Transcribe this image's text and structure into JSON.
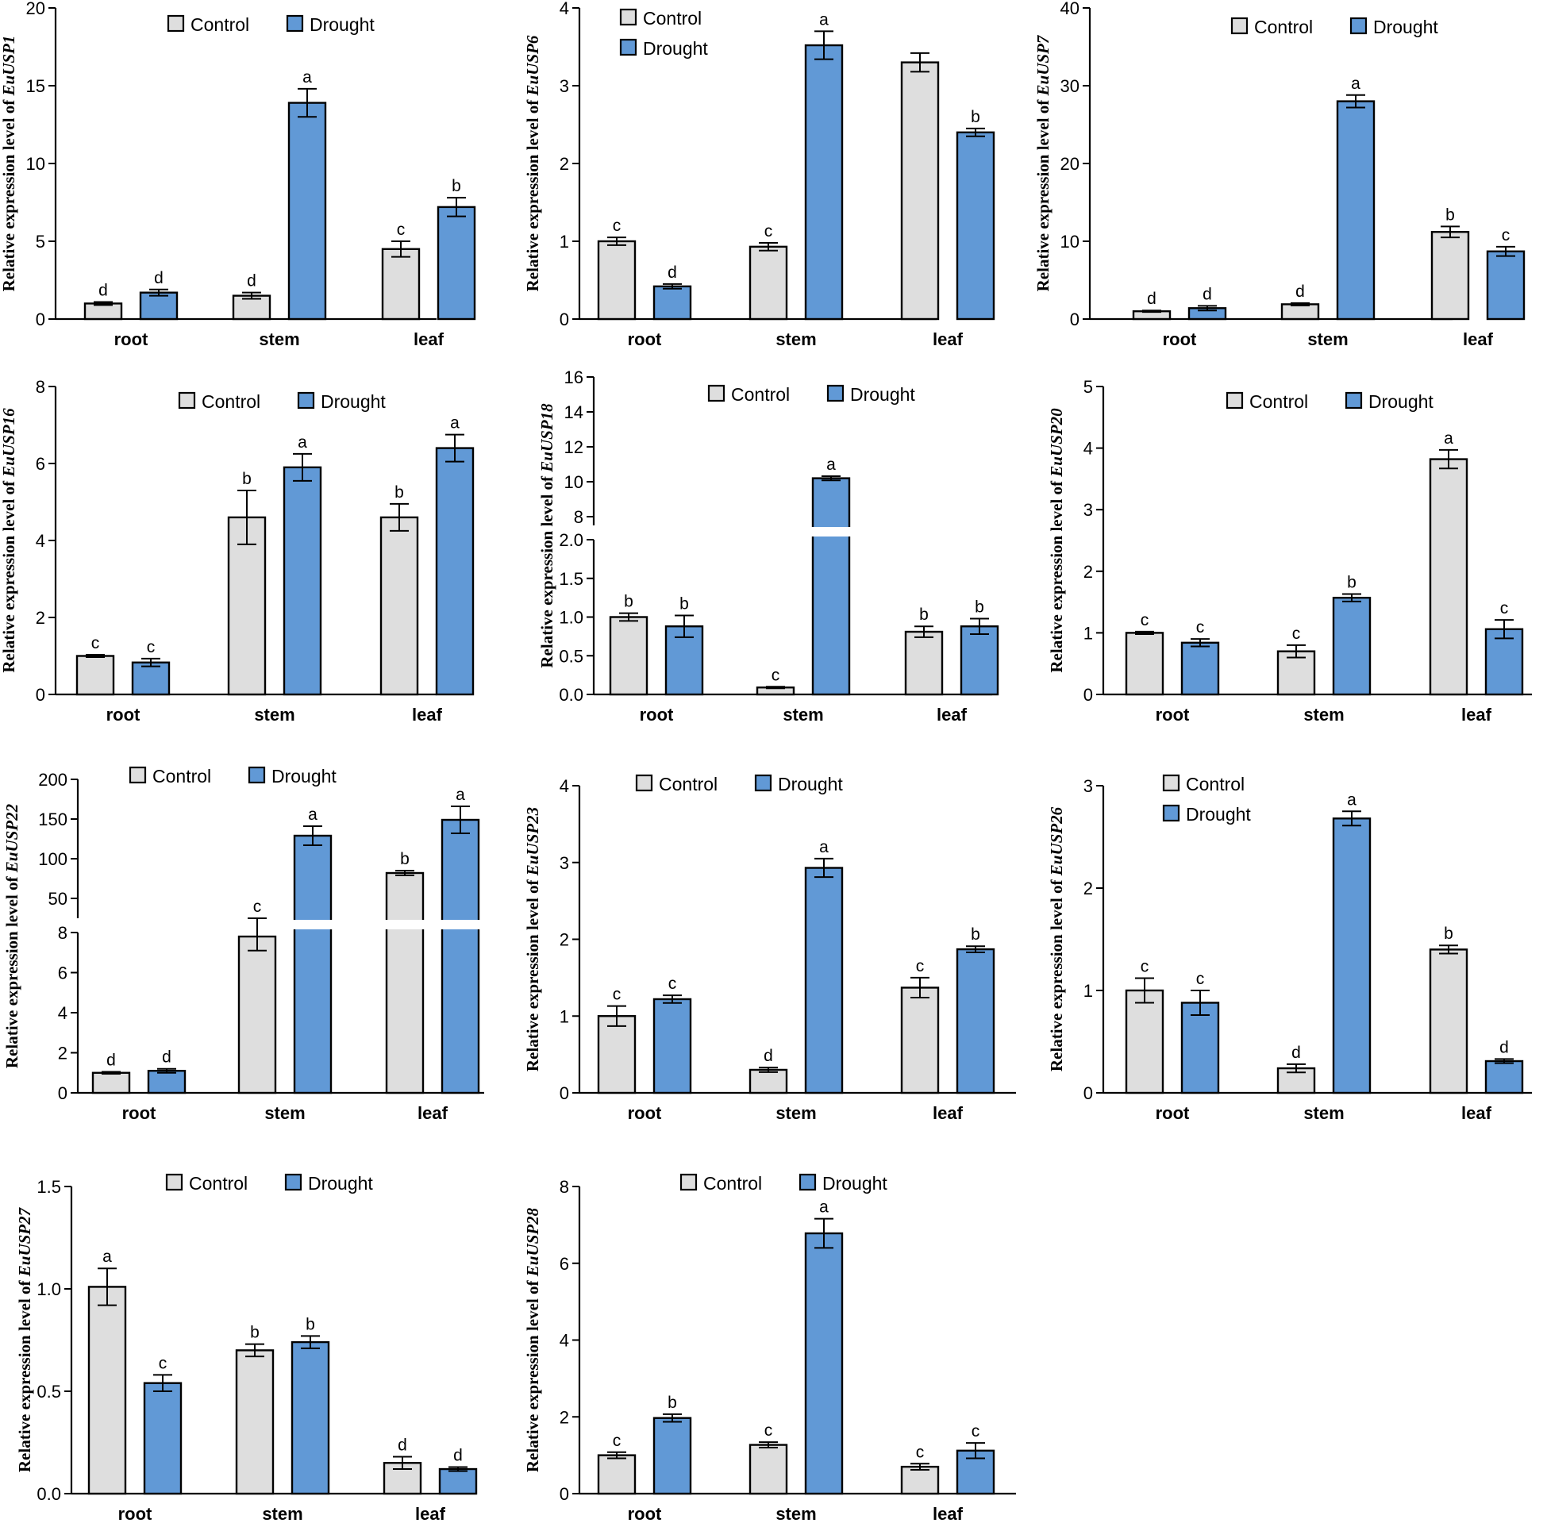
{
  "chart_data": [
    {
      "type": "bar",
      "gene": "EuUSP1",
      "ylabel": "Relative expression level of",
      "categories": [
        "root",
        "stem",
        "leaf"
      ],
      "yticks": [
        "0",
        "5",
        "10",
        "15",
        "20"
      ],
      "ylim": [
        0,
        20
      ],
      "legend": "horizontal",
      "series": [
        {
          "name": "Control",
          "values": [
            1.0,
            1.5,
            4.5
          ],
          "errors": [
            0.1,
            0.2,
            0.5
          ],
          "letters": [
            "d",
            "d",
            "c"
          ]
        },
        {
          "name": "Drought",
          "values": [
            1.7,
            13.9,
            7.2
          ],
          "errors": [
            0.2,
            0.9,
            0.6
          ],
          "letters": [
            "d",
            "a",
            "b"
          ]
        }
      ]
    },
    {
      "type": "bar",
      "gene": "EuUSP6",
      "ylabel": "Relative expression level of",
      "categories": [
        "root",
        "stem",
        "leaf"
      ],
      "yticks": [
        "0",
        "1",
        "2",
        "3",
        "4"
      ],
      "ylim": [
        0,
        4
      ],
      "legend": "vertical",
      "series": [
        {
          "name": "Control",
          "values": [
            1.0,
            0.93,
            3.3
          ],
          "errors": [
            0.05,
            0.05,
            0.12
          ],
          "letters": [
            "c",
            "c",
            ""
          ]
        },
        {
          "name": "Drought",
          "values": [
            0.42,
            3.52,
            2.4
          ],
          "errors": [
            0.03,
            0.18,
            0.05
          ],
          "letters": [
            "d",
            "a",
            "b"
          ]
        }
      ]
    },
    {
      "type": "bar",
      "gene": "EuUSP7",
      "ylabel": "Relative expression level of",
      "categories": [
        "root",
        "stem",
        "leaf"
      ],
      "yticks": [
        "0",
        "10",
        "20",
        "30",
        "40"
      ],
      "ylim": [
        0,
        40
      ],
      "legend": "horizontal",
      "series": [
        {
          "name": "Control",
          "values": [
            1.0,
            1.9,
            11.2
          ],
          "errors": [
            0.1,
            0.15,
            0.7
          ],
          "letters": [
            "d",
            "d",
            "b"
          ]
        },
        {
          "name": "Drought",
          "values": [
            1.4,
            28.0,
            8.7
          ],
          "errors": [
            0.3,
            0.8,
            0.6
          ],
          "letters": [
            "d",
            "a",
            "c"
          ]
        }
      ]
    },
    {
      "type": "bar",
      "gene": "EuUSP16",
      "ylabel": "Relative expression level of",
      "categories": [
        "root",
        "stem",
        "leaf"
      ],
      "yticks": [
        "0",
        "2",
        "4",
        "6",
        "8"
      ],
      "ylim": [
        0,
        8
      ],
      "legend": "horizontal",
      "series": [
        {
          "name": "Control",
          "values": [
            1.0,
            4.6,
            4.6
          ],
          "errors": [
            0.03,
            0.7,
            0.35
          ],
          "letters": [
            "c",
            "b",
            "b"
          ]
        },
        {
          "name": "Drought",
          "values": [
            0.83,
            5.9,
            6.4
          ],
          "errors": [
            0.1,
            0.35,
            0.35
          ],
          "letters": [
            "c",
            "a",
            "a"
          ]
        }
      ]
    },
    {
      "type": "bar",
      "gene": "EuUSP18",
      "ylabel": "Relative expression level of",
      "categories": [
        "root",
        "stem",
        "leaf"
      ],
      "yticks": [
        "0.0",
        "0.5",
        "1.0",
        "1.5",
        "2.0"
      ],
      "yticks_upper": [
        "8",
        "10",
        "12",
        "14",
        "16"
      ],
      "ylim": [
        0,
        16
      ],
      "axis_break": [
        2.0,
        7.5
      ],
      "legend": "horizontal",
      "series": [
        {
          "name": "Control",
          "values": [
            1.0,
            0.09,
            0.81
          ],
          "errors": [
            0.05,
            0.01,
            0.07
          ],
          "letters": [
            "b",
            "c",
            "b"
          ]
        },
        {
          "name": "Drought",
          "values": [
            0.88,
            10.2,
            0.88
          ],
          "errors": [
            0.14,
            0.12,
            0.1
          ],
          "letters": [
            "b",
            "a",
            "b"
          ]
        }
      ]
    },
    {
      "type": "bar",
      "gene": "EuUSP20",
      "ylabel": "Relative expression level of",
      "categories": [
        "root",
        "stem",
        "leaf"
      ],
      "yticks": [
        "0",
        "1",
        "2",
        "3",
        "4",
        "5"
      ],
      "ylim": [
        0,
        5
      ],
      "legend": "horizontal",
      "series": [
        {
          "name": "Control",
          "values": [
            1.0,
            0.7,
            3.82
          ],
          "errors": [
            0.02,
            0.1,
            0.15
          ],
          "letters": [
            "c",
            "c",
            "a"
          ]
        },
        {
          "name": "Drought",
          "values": [
            0.84,
            1.57,
            1.06
          ],
          "errors": [
            0.06,
            0.06,
            0.15
          ],
          "letters": [
            "c",
            "b",
            "c"
          ]
        }
      ]
    },
    {
      "type": "bar",
      "gene": "EuUSP22",
      "ylabel": "Relative expression level of",
      "categories": [
        "root",
        "stem",
        "leaf"
      ],
      "yticks": [
        "0",
        "2",
        "4",
        "6",
        "8"
      ],
      "yticks_upper": [
        "50",
        "100",
        "150",
        "200"
      ],
      "ylim": [
        0,
        200
      ],
      "axis_break": [
        9,
        25
      ],
      "legend": "horizontal",
      "series": [
        {
          "name": "Control",
          "values": [
            1.0,
            7.8,
            82
          ],
          "errors": [
            0.05,
            0.7,
            3
          ],
          "letters": [
            "d",
            "c",
            "b"
          ]
        },
        {
          "name": "Drought",
          "values": [
            1.1,
            129,
            149
          ],
          "errors": [
            0.1,
            12,
            17
          ],
          "letters": [
            "d",
            "a",
            "a"
          ]
        }
      ]
    },
    {
      "type": "bar",
      "gene": "EuUSP23",
      "ylabel": "Relative expression level of",
      "categories": [
        "root",
        "stem",
        "leaf"
      ],
      "yticks": [
        "0",
        "1",
        "2",
        "3",
        "4"
      ],
      "ylim": [
        0,
        4
      ],
      "legend": "horizontal",
      "series": [
        {
          "name": "Control",
          "values": [
            1.0,
            0.3,
            1.37
          ],
          "errors": [
            0.13,
            0.03,
            0.13
          ],
          "letters": [
            "c",
            "d",
            "c"
          ]
        },
        {
          "name": "Drought",
          "values": [
            1.22,
            2.93,
            1.87
          ],
          "errors": [
            0.05,
            0.12,
            0.04
          ],
          "letters": [
            "c",
            "a",
            "b"
          ]
        }
      ]
    },
    {
      "type": "bar",
      "gene": "EuUSP26",
      "ylabel": "Relative expression level of",
      "categories": [
        "root",
        "stem",
        "leaf"
      ],
      "yticks": [
        "0",
        "1",
        "2",
        "3"
      ],
      "ylim": [
        0,
        3
      ],
      "legend": "vertical",
      "series": [
        {
          "name": "Control",
          "values": [
            1.0,
            0.24,
            1.4
          ],
          "errors": [
            0.12,
            0.04,
            0.04
          ],
          "letters": [
            "c",
            "d",
            "b"
          ]
        },
        {
          "name": "Drought",
          "values": [
            0.88,
            2.68,
            0.31
          ],
          "errors": [
            0.12,
            0.07,
            0.02
          ],
          "letters": [
            "c",
            "a",
            "d"
          ]
        }
      ]
    },
    {
      "type": "bar",
      "gene": "EuUSP27",
      "ylabel": "Relative expression level of",
      "categories": [
        "root",
        "stem",
        "leaf"
      ],
      "yticks": [
        "0.0",
        "0.5",
        "1.0",
        "1.5"
      ],
      "ylim": [
        0,
        1.5
      ],
      "legend": "horizontal",
      "series": [
        {
          "name": "Control",
          "values": [
            1.01,
            0.7,
            0.15
          ],
          "errors": [
            0.09,
            0.03,
            0.03
          ],
          "letters": [
            "a",
            "b",
            "d"
          ]
        },
        {
          "name": "Drought",
          "values": [
            0.54,
            0.74,
            0.12
          ],
          "errors": [
            0.04,
            0.03,
            0.01
          ],
          "letters": [
            "c",
            "b",
            "d"
          ]
        }
      ]
    },
    {
      "type": "bar",
      "gene": "EuUSP28",
      "ylabel": "Relative expression level of",
      "categories": [
        "root",
        "stem",
        "leaf"
      ],
      "yticks": [
        "0",
        "2",
        "4",
        "6",
        "8"
      ],
      "ylim": [
        0,
        8
      ],
      "legend": "horizontal",
      "series": [
        {
          "name": "Control",
          "values": [
            1.0,
            1.27,
            0.7
          ],
          "errors": [
            0.08,
            0.07,
            0.08
          ],
          "letters": [
            "c",
            "c",
            "c"
          ]
        },
        {
          "name": "Drought",
          "values": [
            1.97,
            6.78,
            1.12
          ],
          "errors": [
            0.1,
            0.38,
            0.2
          ],
          "letters": [
            "b",
            "a",
            "c"
          ]
        }
      ]
    }
  ],
  "colors": {
    "control": "#dedede",
    "drought": "#6199d6",
    "stroke": "#000000"
  }
}
